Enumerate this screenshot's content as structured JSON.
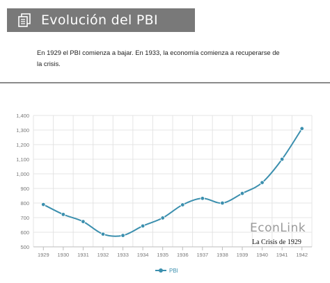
{
  "header": {
    "title": "Evolución del PBI",
    "icon": "document-icon"
  },
  "intro_text": "En 1929 el PBI comienza a bajar. En 1933, la economía comienza a recuperarse de la crisis.",
  "brand": {
    "name": "EconLink",
    "subtitle": "La Crisis de 1929"
  },
  "colors": {
    "header_bg": "#797979",
    "series": "#3b8fae",
    "grid": "#e4e4e4",
    "axis_text": "#777777"
  },
  "chart_data": {
    "type": "line",
    "x": [
      "1929",
      "1930",
      "1931",
      "1932",
      "1933",
      "1934",
      "1935",
      "1936",
      "1937",
      "1938",
      "1939",
      "1940",
      "1941",
      "1942"
    ],
    "series": [
      {
        "name": "PBI",
        "values": [
          790,
          722,
          673,
          587,
          578,
          643,
          698,
          788,
          832,
          800,
          866,
          940,
          1100,
          1310
        ]
      }
    ],
    "y_ticks": [
      "500",
      "600",
      "700",
      "800",
      "900",
      "1,000",
      "1,100",
      "1,200",
      "1,300",
      "1,400"
    ],
    "ylim": [
      500,
      1400
    ],
    "grid": true,
    "legend_position": "bottom-center"
  }
}
